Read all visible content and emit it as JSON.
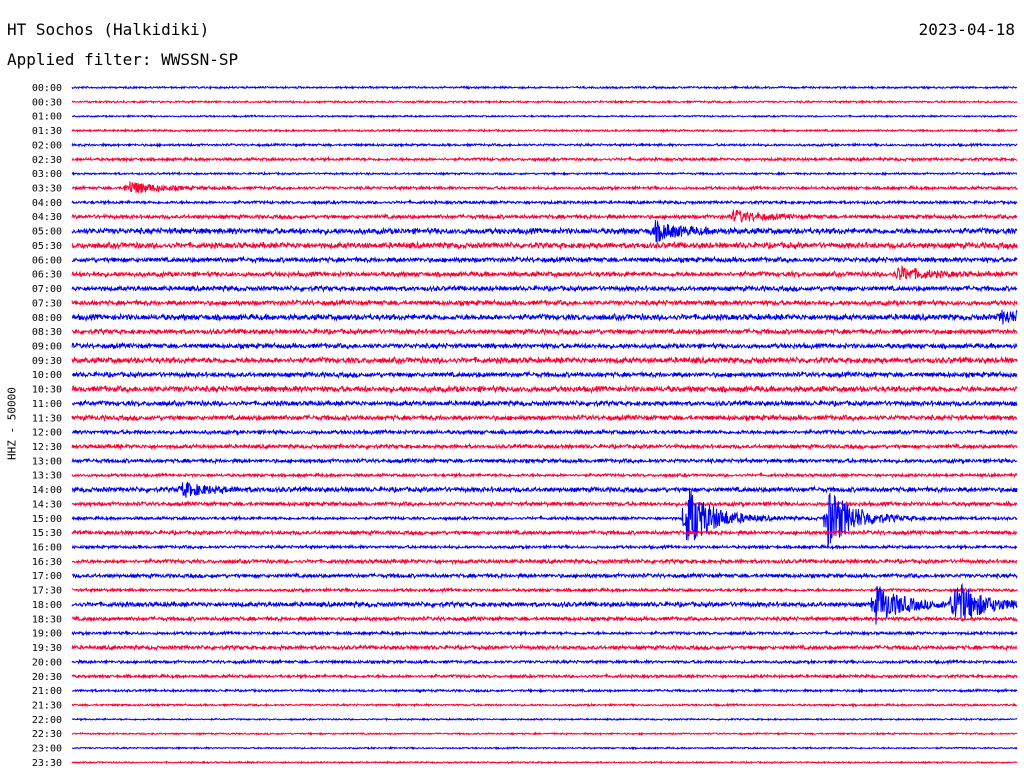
{
  "header": {
    "station": "HT Sochos (Halkidiki)",
    "date": "2023-04-18",
    "filter": "Applied filter: WWSSN-SP"
  },
  "chart_data": {
    "type": "line",
    "ylabel": "HHZ - 50000",
    "trace_colors": [
      "#0000ff",
      "#ff0033"
    ],
    "rows": [
      "00:00",
      "00:30",
      "01:00",
      "01:30",
      "02:00",
      "02:30",
      "03:00",
      "03:30",
      "04:00",
      "04:30",
      "05:00",
      "05:30",
      "06:00",
      "06:30",
      "07:00",
      "07:30",
      "08:00",
      "08:30",
      "09:00",
      "09:30",
      "10:00",
      "10:30",
      "11:00",
      "11:30",
      "12:00",
      "12:30",
      "13:00",
      "13:30",
      "14:00",
      "14:30",
      "15:00",
      "15:30",
      "16:00",
      "16:30",
      "17:00",
      "17:30",
      "18:00",
      "18:30",
      "19:00",
      "19:30",
      "20:00",
      "20:30",
      "21:00",
      "21:30",
      "22:00",
      "22:30",
      "23:00",
      "23:30"
    ],
    "noise_level": [
      1,
      1,
      0.8,
      1,
      1.2,
      1.5,
      1,
      1.5,
      1.5,
      2,
      3,
      3,
      2.5,
      2.5,
      2.5,
      2.5,
      3,
      2.5,
      2.5,
      3,
      2.5,
      3,
      2.5,
      2.5,
      2,
      2,
      2,
      1.5,
      2.5,
      2,
      1.5,
      2,
      1.5,
      2,
      2,
      1.5,
      2.5,
      2,
      1.5,
      2,
      1.5,
      1.5,
      1.2,
      1,
      0.8,
      0.8,
      0.8,
      0.8
    ],
    "events": [
      {
        "row": "15:00",
        "minute": 19.5,
        "amplitude": 32
      },
      {
        "row": "15:00",
        "minute": 24.0,
        "amplitude": 30
      },
      {
        "row": "18:00",
        "minute": 25.5,
        "amplitude": 20
      },
      {
        "row": "18:00",
        "minute": 28.0,
        "amplitude": 24
      },
      {
        "row": "05:00",
        "minute": 18.5,
        "amplitude": 9
      },
      {
        "row": "04:30",
        "minute": 21.0,
        "amplitude": 6
      },
      {
        "row": "03:30",
        "minute": 1.8,
        "amplitude": 7
      },
      {
        "row": "14:00",
        "minute": 3.5,
        "amplitude": 7
      },
      {
        "row": "06:30",
        "minute": 26.2,
        "amplitude": 7
      },
      {
        "row": "08:00",
        "minute": 29.5,
        "amplitude": 6
      }
    ]
  }
}
